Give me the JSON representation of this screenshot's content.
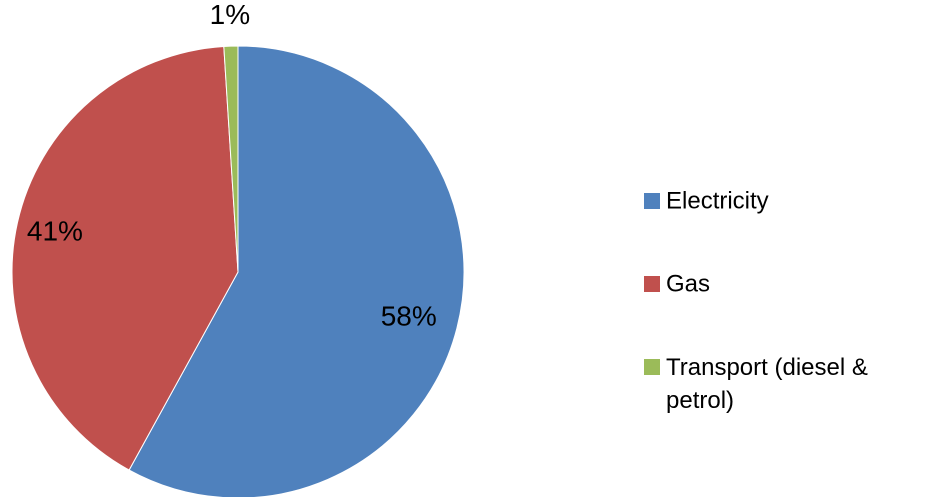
{
  "chart_data": {
    "type": "pie",
    "title": "",
    "categories": [
      "Electricity",
      "Gas",
      "Transport (diesel & petrol)"
    ],
    "values": [
      58,
      41,
      1
    ],
    "data_labels": [
      "58%",
      "41%",
      "1%"
    ],
    "colors": [
      "#4F81BD",
      "#C0504D",
      "#9BBB59"
    ],
    "legend": {
      "position": "right",
      "entries": [
        "Electricity",
        "Gas",
        "Transport (diesel & petrol)"
      ]
    }
  }
}
